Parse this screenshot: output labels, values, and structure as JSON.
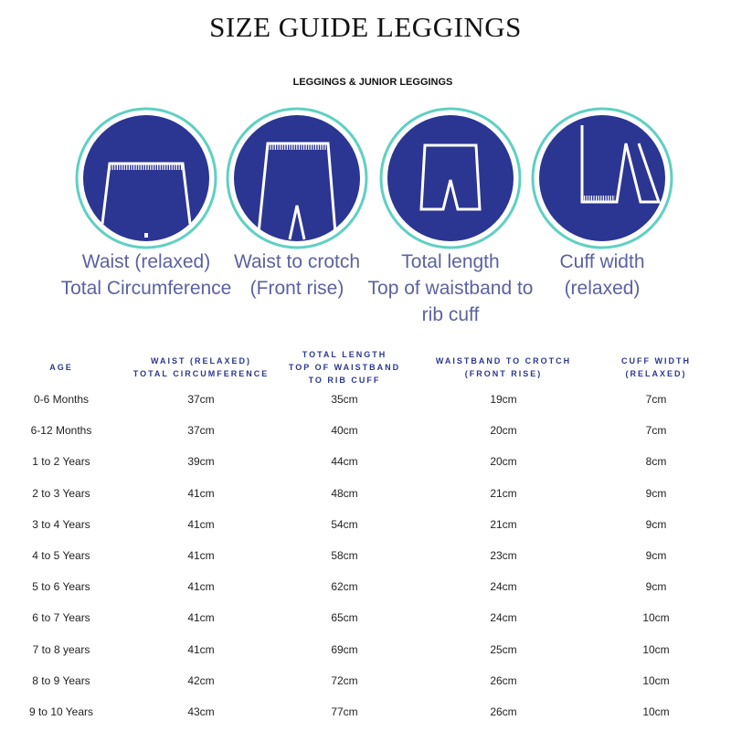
{
  "title": "SIZE GUIDE LEGGINGS",
  "subtitle": "LEGGINGS & JUNIOR LEGGINGS",
  "colors": {
    "navy": "#2b3592",
    "ring": "#5fd0c2",
    "label": "#5b62a0"
  },
  "icons": [
    {
      "name": "waist-icon",
      "label1": "Waist (relaxed)",
      "label2": "Total Circumference",
      "label3": ""
    },
    {
      "name": "waist-to-crotch-icon",
      "label1": "Waist to crotch",
      "label2": "(Front rise)",
      "label3": ""
    },
    {
      "name": "total-length-icon",
      "label1": "Total length",
      "label2": "Top of waistband to",
      "label3": "rib cuff"
    },
    {
      "name": "cuff-width-icon",
      "label1": "Cuff width",
      "label2": "(relaxed)",
      "label3": ""
    }
  ],
  "table": {
    "headers": [
      [
        "AGE"
      ],
      [
        "WAIST (RELAXED)",
        "TOTAL CIRCUMFERENCE"
      ],
      [
        "TOTAL LENGTH",
        "TOP OF WAISTBAND",
        "TO RIB CUFF"
      ],
      [
        "WAISTBAND TO CROTCH",
        "(FRONT RISE)"
      ],
      [
        "CUFF WIDTH",
        "(RELAXED)"
      ]
    ],
    "rows": [
      [
        "0-6 Months",
        "37cm",
        "35cm",
        "19cm",
        "7cm"
      ],
      [
        "6-12 Months",
        "37cm",
        "40cm",
        "20cm",
        "7cm"
      ],
      [
        "1 to 2 Years",
        "39cm",
        "44cm",
        "20cm",
        "8cm"
      ],
      [
        "2 to 3 Years",
        "41cm",
        "48cm",
        "21cm",
        "9cm"
      ],
      [
        "3 to 4 Years",
        "41cm",
        "54cm",
        "21cm",
        "9cm"
      ],
      [
        "4 to 5 Years",
        "41cm",
        "58cm",
        "23cm",
        "9cm"
      ],
      [
        "5 to 6 Years",
        "41cm",
        "62cm",
        "24cm",
        "9cm"
      ],
      [
        "6 to 7 Years",
        "41cm",
        "65cm",
        "24cm",
        "10cm"
      ],
      [
        "7 to 8 years",
        "41cm",
        "69cm",
        "25cm",
        "10cm"
      ],
      [
        "8 to 9 Years",
        "42cm",
        "72cm",
        "26cm",
        "10cm"
      ],
      [
        "9 to 10 Years",
        "43cm",
        "77cm",
        "26cm",
        "10cm"
      ]
    ]
  }
}
